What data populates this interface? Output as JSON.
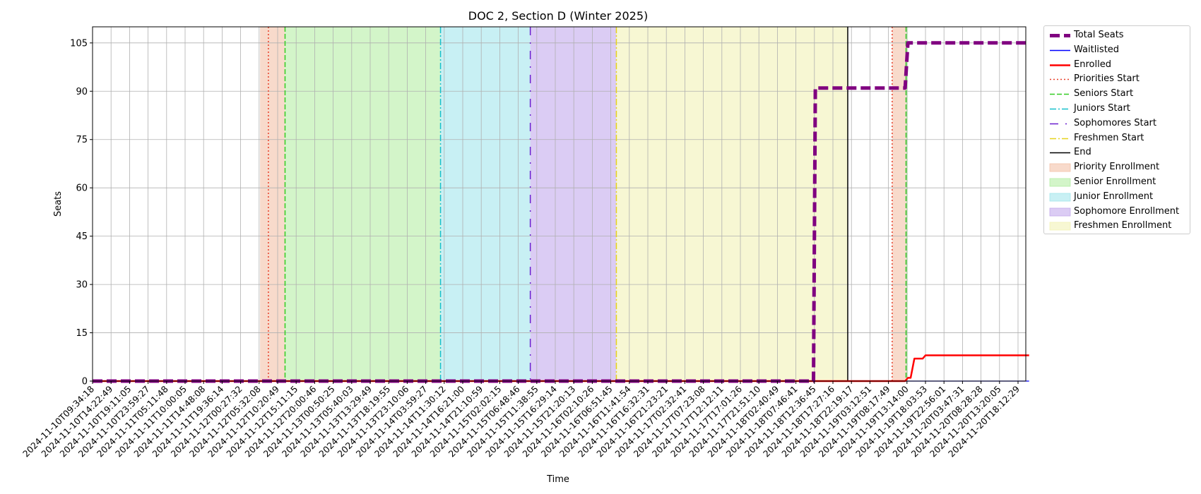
{
  "chart_data": {
    "type": "line",
    "title": "DOC 2, Section D (Winter 2025)",
    "xlabel": "Time",
    "ylabel": "Seats",
    "ylim": [
      0,
      110
    ],
    "yticks": [
      0,
      15,
      30,
      45,
      60,
      75,
      90,
      105
    ],
    "grid": true,
    "legend_position": "outside-right",
    "x_tick_labels": [
      "2024-11-10T09:34:18",
      "2024-11-10T14:22:49",
      "2024-11-10T19:11:05",
      "2024-11-10T23:59:27",
      "2024-11-11T05:11:48",
      "2024-11-11T10:00:05",
      "2024-11-11T14:48:08",
      "2024-11-11T19:36:14",
      "2024-11-12T00:27:32",
      "2024-11-12T05:32:08",
      "2024-11-12T10:20:49",
      "2024-11-12T15:11:15",
      "2024-11-12T20:00:46",
      "2024-11-13T00:50:25",
      "2024-11-13T05:40:03",
      "2024-11-13T13:29:49",
      "2024-11-13T18:19:55",
      "2024-11-13T23:10:06",
      "2024-11-14T03:59:27",
      "2024-11-14T11:30:12",
      "2024-11-14T16:21:00",
      "2024-11-14T21:10:59",
      "2024-11-15T02:02:15",
      "2024-11-15T06:48:46",
      "2024-11-15T11:38:55",
      "2024-11-15T16:29:14",
      "2024-11-15T21:20:13",
      "2024-11-16T02:10:26",
      "2024-11-16T06:51:45",
      "2024-11-16T11:41:54",
      "2024-11-16T16:32:31",
      "2024-11-16T21:23:21",
      "2024-11-17T02:32:41",
      "2024-11-17T07:23:08",
      "2024-11-17T12:12:11",
      "2024-11-17T17:01:26",
      "2024-11-17T21:51:10",
      "2024-11-18T02:40:49",
      "2024-11-18T07:46:41",
      "2024-11-18T12:36:45",
      "2024-11-18T17:27:16",
      "2024-11-18T22:19:17",
      "2024-11-19T03:12:51",
      "2024-11-19T08:17:49",
      "2024-11-19T13:14:00",
      "2024-11-19T18:03:53",
      "2024-11-19T22:56:01",
      "2024-11-20T03:47:31",
      "2024-11-20T08:28:28",
      "2024-11-20T13:20:05",
      "2024-11-20T18:12:29"
    ],
    "x_range_index": [
      0,
      50.6
    ],
    "series": [
      {
        "name": "Total Seats",
        "color": "#800080",
        "style": "dashed-thick",
        "points": [
          [
            0,
            0
          ],
          [
            38.95,
            0
          ],
          [
            39.05,
            91
          ],
          [
            43.9,
            91
          ],
          [
            44.05,
            105
          ],
          [
            50.6,
            105
          ]
        ]
      },
      {
        "name": "Waitlisted",
        "color": "#0000ff",
        "style": "solid",
        "points": [
          [
            0,
            0
          ],
          [
            50.6,
            0
          ]
        ]
      },
      {
        "name": "Enrolled",
        "color": "#ff0000",
        "style": "solid",
        "points": [
          [
            0,
            0
          ],
          [
            43.9,
            0
          ],
          [
            44.05,
            1
          ],
          [
            44.2,
            1
          ],
          [
            44.4,
            7
          ],
          [
            44.85,
            7
          ],
          [
            45.0,
            8
          ],
          [
            50.6,
            8
          ]
        ]
      }
    ],
    "vertical_markers": [
      {
        "name": "Priorities Start",
        "x": 9.5,
        "color": "#e8402a",
        "style": "dotted"
      },
      {
        "name": "Seniors Start",
        "x": 10.4,
        "color": "#33cc22",
        "style": "dashed"
      },
      {
        "name": "Juniors Start",
        "x": 18.8,
        "color": "#16c0cc",
        "style": "dashdot"
      },
      {
        "name": "Sophomores Start",
        "x": 23.65,
        "color": "#6a1fcf",
        "style": "loosedashdot"
      },
      {
        "name": "Freshmen Start",
        "x": 28.3,
        "color": "#e6d21e",
        "style": "dashdot"
      },
      {
        "name": "End",
        "x": 40.8,
        "color": "#000000",
        "style": "solid"
      },
      {
        "name": "Priorities Start",
        "x": 43.2,
        "color": "#e8402a",
        "style": "dotted"
      },
      {
        "name": "Seniors Start",
        "x": 43.95,
        "color": "#33cc22",
        "style": "dashed"
      }
    ],
    "shaded_regions": [
      {
        "name": "Priority Enrollment",
        "from": 9.05,
        "to": 10.4,
        "color": "#f4c2a8"
      },
      {
        "name": "Senior Enrollment",
        "from": 10.4,
        "to": 18.8,
        "color": "#b5eea5"
      },
      {
        "name": "Junior Enrollment",
        "from": 18.8,
        "to": 23.65,
        "color": "#a3e6ec"
      },
      {
        "name": "Sophomore Enrollment",
        "from": 23.65,
        "to": 28.3,
        "color": "#c3aaec"
      },
      {
        "name": "Freshmen Enrollment",
        "from": 28.3,
        "to": 40.8,
        "color": "#f2f2b6"
      },
      {
        "name": "Priority Enrollment",
        "from": 43.2,
        "to": 43.95,
        "color": "#f4c2a8"
      },
      {
        "name": "Senior Enrollment",
        "from": 43.95,
        "to": 44.05,
        "color": "#b5eea5"
      }
    ],
    "legend": [
      {
        "label": "Total Seats",
        "kind": "line",
        "color": "#800080",
        "style": "dashed-thick"
      },
      {
        "label": "Waitlisted",
        "kind": "line",
        "color": "#0000ff",
        "style": "solid"
      },
      {
        "label": "Enrolled",
        "kind": "line",
        "color": "#ff0000",
        "style": "solid-thick"
      },
      {
        "label": "Priorities Start",
        "kind": "line",
        "color": "#e8402a",
        "style": "dotted"
      },
      {
        "label": "Seniors Start",
        "kind": "line",
        "color": "#33cc22",
        "style": "dashed"
      },
      {
        "label": "Juniors Start",
        "kind": "line",
        "color": "#16c0cc",
        "style": "dashdot"
      },
      {
        "label": "Sophomores Start",
        "kind": "line",
        "color": "#6a1fcf",
        "style": "loosedashdot"
      },
      {
        "label": "Freshmen Start",
        "kind": "line",
        "color": "#e6d21e",
        "style": "dashdot"
      },
      {
        "label": "End",
        "kind": "line",
        "color": "#000000",
        "style": "solid"
      },
      {
        "label": "Priority Enrollment",
        "kind": "patch",
        "color": "#f4c2a8"
      },
      {
        "label": "Senior Enrollment",
        "kind": "patch",
        "color": "#b5eea5"
      },
      {
        "label": "Junior Enrollment",
        "kind": "patch",
        "color": "#a3e6ec"
      },
      {
        "label": "Sophomore Enrollment",
        "kind": "patch",
        "color": "#c3aaec"
      },
      {
        "label": "Freshmen Enrollment",
        "kind": "patch",
        "color": "#f2f2b6"
      }
    ]
  }
}
